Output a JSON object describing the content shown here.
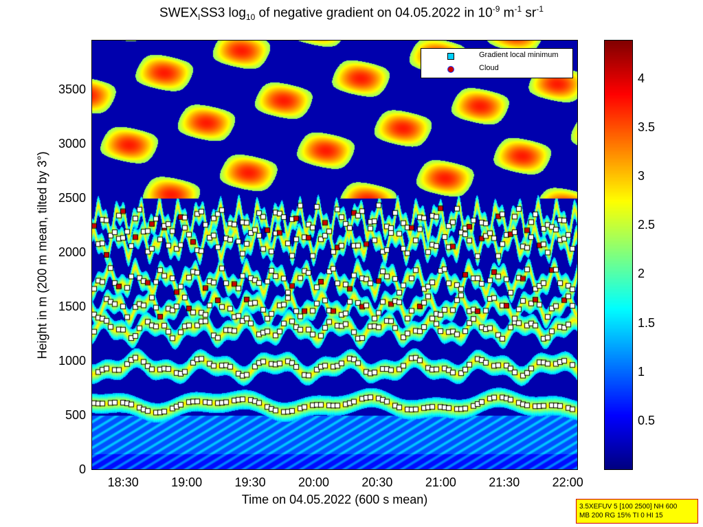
{
  "title": {
    "prefix": "SWEX",
    "sub1": "I",
    "part2": "SS3 log",
    "sub2": "10",
    "part3": " of negative gradient on 04.05.2022 in 10",
    "sup1": "-9",
    "part4": " m",
    "sup2": "-1",
    "part5": " sr",
    "sup3": "-1"
  },
  "colors": {
    "colormap": "jet",
    "gradient_marker": "#ffffff",
    "cloud_marker": "#cc0000",
    "legend_gradient_fill": "#00d0ff",
    "infobox_fill": "#ffff00",
    "infobox_border": "#d00000"
  },
  "legend": {
    "items": [
      {
        "label": "Gradient local minimum",
        "marker": "square",
        "color": "#00d0ff"
      },
      {
        "label": "Cloud",
        "marker": "circle",
        "color": "#cc0000"
      }
    ],
    "placement": "top-right"
  },
  "infobox": {
    "line1": "3.5XEFUV 5 [100 2500] NH 600",
    "line2": "MB 200 RG 15% TI 0 HI 15"
  },
  "chart_data": {
    "type": "heatmap",
    "title": "SWEX_I SS3 log10 of negative gradient on 04.05.2022 in 10^-9 m^-1 sr^-1",
    "xlabel": "Time on 04.05.2022 (600 s mean)",
    "ylabel": "Height in m (200 m mean, tilted by 3°)",
    "x_ticks": [
      "18:30",
      "19:00",
      "19:30",
      "20:00",
      "20:30",
      "21:00",
      "21:30",
      "22:00"
    ],
    "x_tick_hours": [
      18.5,
      19.0,
      19.5,
      20.0,
      20.5,
      21.0,
      21.5,
      22.0
    ],
    "xlim": [
      18.25,
      22.08
    ],
    "y_ticks": [
      "0",
      "500",
      "1000",
      "1500",
      "2000",
      "2500",
      "3000",
      "3500"
    ],
    "y_tick_values": [
      0,
      500,
      1000,
      1500,
      2000,
      2500,
      3000,
      3500
    ],
    "ylim": [
      0,
      3960
    ],
    "colorbar_ticks": [
      "0.5",
      "1",
      "1.5",
      "2",
      "2.5",
      "3",
      "3.5",
      "4"
    ],
    "colorbar_tick_values": [
      0.5,
      1,
      1.5,
      2,
      2.5,
      3,
      3.5,
      4
    ],
    "clim": [
      0,
      4.4
    ],
    "layers": [
      {
        "name": "gradient_minimum_lines",
        "heights_m": [
          600,
          950,
          1300,
          1500,
          1750,
          2100,
          2300
        ]
      },
      {
        "name": "upper_aerosol_layer",
        "height_range_m": [
          2500,
          3900
        ]
      }
    ],
    "grid": false
  }
}
